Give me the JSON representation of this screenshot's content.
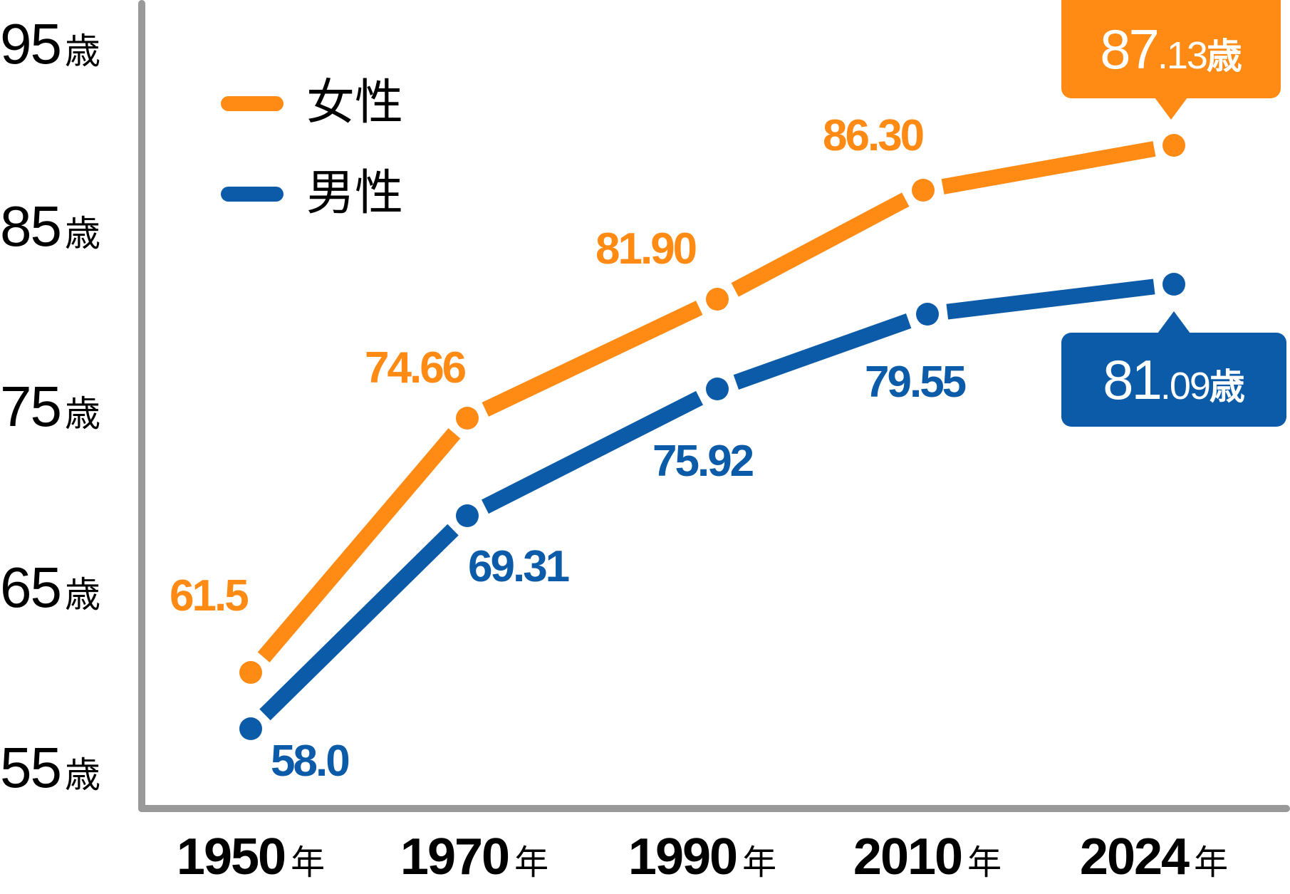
{
  "colors": {
    "female": "#FF8A14",
    "male": "#0B5BA8",
    "axis": "#999999",
    "text": "#000000",
    "background": "#FFFFFF"
  },
  "legend": {
    "female_label": "女性",
    "male_label": "男性"
  },
  "y_axis": {
    "unit": "歳",
    "ticks": [
      {
        "value": "95",
        "unit": "歳"
      },
      {
        "value": "85",
        "unit": "歳"
      },
      {
        "value": "75",
        "unit": "歳"
      },
      {
        "value": "65",
        "unit": "歳"
      },
      {
        "value": "55",
        "unit": "歳"
      }
    ]
  },
  "x_axis": {
    "unit": "年",
    "ticks": [
      {
        "value": "1950",
        "unit": "年"
      },
      {
        "value": "1970",
        "unit": "年"
      },
      {
        "value": "1990",
        "unit": "年"
      },
      {
        "value": "2010",
        "unit": "年"
      },
      {
        "value": "2024",
        "unit": "年"
      }
    ]
  },
  "labels": {
    "female": [
      "61.5",
      "74.66",
      "81.90",
      "86.30"
    ],
    "male": [
      "58.0",
      "69.31",
      "75.92",
      "79.55"
    ]
  },
  "callouts": {
    "female": {
      "int": "87",
      "dec": ".13",
      "unit": "歳"
    },
    "male": {
      "int": "81",
      "dec": ".09",
      "unit": "歳"
    }
  },
  "chart_data": {
    "type": "line",
    "title": "",
    "xlabel": "",
    "ylabel": "",
    "categories": [
      "1950年",
      "1970年",
      "1990年",
      "2010年",
      "2024年"
    ],
    "x": [
      1950,
      1970,
      1990,
      2010,
      2024
    ],
    "series": [
      {
        "name": "女性",
        "color": "#FF8A14",
        "values": [
          61.5,
          74.66,
          81.9,
          86.3,
          87.13
        ]
      },
      {
        "name": "男性",
        "color": "#0B5BA8",
        "values": [
          58.0,
          69.31,
          75.92,
          79.55,
          81.09
        ]
      }
    ],
    "ylim": [
      55,
      95
    ],
    "yticks": [
      "55歳",
      "65歳",
      "75歳",
      "85歳",
      "95歳"
    ],
    "grid": false,
    "legend_position": "upper-left",
    "annotations": [
      "87.13歳",
      "81.09歳"
    ]
  }
}
